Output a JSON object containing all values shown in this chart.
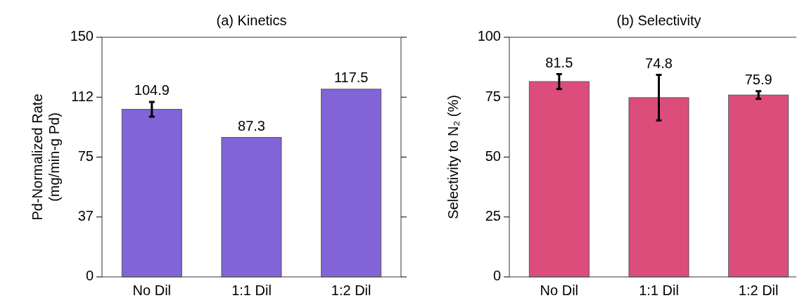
{
  "chart_data": [
    {
      "type": "bar",
      "title": "(a) Kinetics",
      "ylabel": "Pd-Normalized Rate\n(mg/min-g Pd)",
      "categories": [
        "No Dil",
        "1:1 Dil",
        "1:2 Dil"
      ],
      "values": [
        104.9,
        87.3,
        117.5
      ],
      "errors": [
        4.6,
        null,
        null
      ],
      "color": "#8264d8",
      "ylim": [
        0,
        150
      ],
      "yticks": [
        0,
        {
          "value": 37.5,
          "label": "37"
        },
        75,
        {
          "value": 112.5,
          "label": "112"
        },
        150
      ],
      "data_labels": true
    },
    {
      "type": "bar",
      "title": "(b) Selectivity",
      "ylabel": "Selectivity to N₂ (%)",
      "categories": [
        "No Dil",
        "1:1 Dil",
        "1:2 Dil"
      ],
      "values": [
        81.5,
        74.8,
        75.9
      ],
      "errors": [
        3.1,
        9.5,
        1.6
      ],
      "color": "#dc4d7c",
      "ylim": [
        0,
        100
      ],
      "yticks": [
        0,
        25,
        50,
        75,
        100
      ],
      "data_labels": true
    }
  ]
}
